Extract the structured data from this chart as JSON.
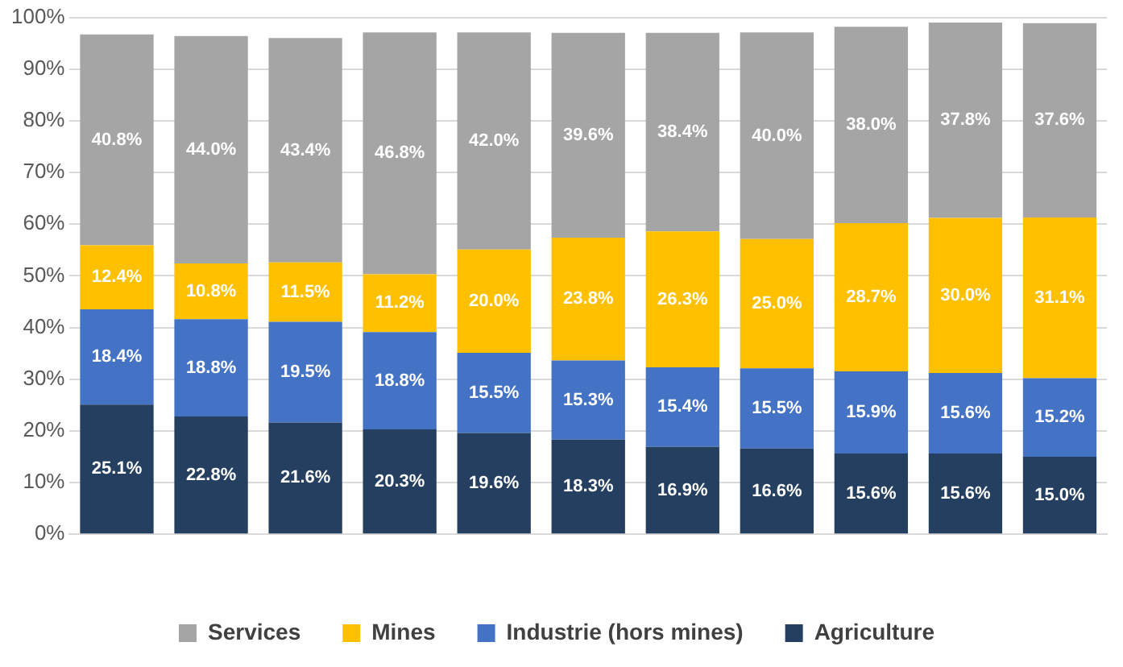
{
  "chart_data": {
    "type": "bar",
    "stacked": true,
    "categories": [
      null,
      null,
      null,
      null,
      null,
      null,
      null,
      null,
      null,
      null,
      null
    ],
    "series": [
      {
        "name": "Agriculture",
        "color": "#243f60",
        "values": [
          25.1,
          22.8,
          21.6,
          20.3,
          19.6,
          18.3,
          16.9,
          16.6,
          15.6,
          15.6,
          15.0
        ],
        "value_labels": [
          "25.1%",
          "22.8%",
          "21.6%",
          "20.3%",
          "19.6%",
          "18.3%",
          "16.9%",
          "16.6%",
          "15.6%",
          "15.6%",
          "15.0%"
        ]
      },
      {
        "name": "Industrie (hors mines)",
        "color": "#4472c4",
        "values": [
          18.4,
          18.8,
          19.5,
          18.8,
          15.5,
          15.3,
          15.4,
          15.5,
          15.9,
          15.6,
          15.2
        ],
        "value_labels": [
          "18.4%",
          "18.8%",
          "19.5%",
          "18.8%",
          "15.5%",
          "15.3%",
          "15.4%",
          "15.5%",
          "15.9%",
          "15.6%",
          "15.2%"
        ]
      },
      {
        "name": "Mines",
        "color": "#ffc000",
        "values": [
          12.4,
          10.8,
          11.5,
          11.2,
          20.0,
          23.8,
          26.3,
          25.0,
          28.7,
          30.0,
          31.1
        ],
        "value_labels": [
          "12.4%",
          "10.8%",
          "11.5%",
          "11.2%",
          "20.0%",
          "23.8%",
          "26.3%",
          "25.0%",
          "28.7%",
          "30.0%",
          "31.1%"
        ]
      },
      {
        "name": "Services",
        "color": "#a5a5a5",
        "values": [
          40.8,
          44.0,
          43.4,
          46.8,
          42.0,
          39.6,
          38.4,
          40.0,
          38.0,
          37.8,
          37.6
        ],
        "value_labels": [
          "40.8%",
          "44.0%",
          "43.4%",
          "46.8%",
          "42.0%",
          "39.6%",
          "38.4%",
          "40.0%",
          "38.0%",
          "37.8%",
          "37.6%"
        ]
      }
    ],
    "ylim": [
      0,
      100
    ],
    "yticks": [
      {
        "value": 0,
        "label": "0%"
      },
      {
        "value": 10,
        "label": "10%"
      },
      {
        "value": 20,
        "label": "20%"
      },
      {
        "value": 30,
        "label": "30%"
      },
      {
        "value": 40,
        "label": "40%"
      },
      {
        "value": 50,
        "label": "50%"
      },
      {
        "value": 60,
        "label": "60%"
      },
      {
        "value": 70,
        "label": "70%"
      },
      {
        "value": 80,
        "label": "80%"
      },
      {
        "value": 90,
        "label": "90%"
      },
      {
        "value": 100,
        "label": "100%"
      }
    ],
    "grid": "y",
    "legend": "bottom"
  }
}
